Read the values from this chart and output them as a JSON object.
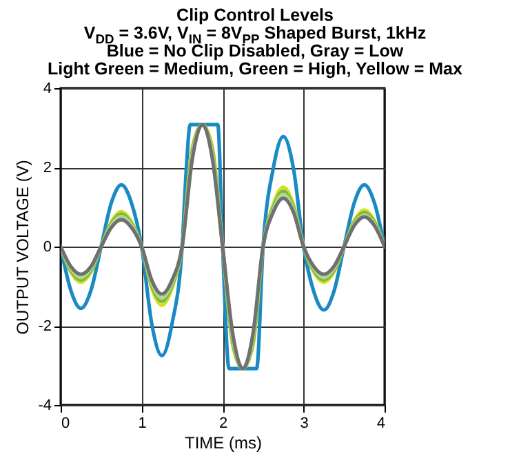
{
  "chart_data": {
    "type": "line",
    "title": "Clip Control Levels",
    "subtitle": "V$_{DD}$ = 3.6V, V$_{IN}$ = 8V$_{PP}$ Shaped Burst, 1kHz\nBlue = No Clip Disabled, Gray = Low\nLight Green = Medium, Green = High, Yellow = Max",
    "xlabel": "TIME (ms)",
    "ylabel": "OUTPUT VOLTAGE (V)",
    "x": [
      0,
      0.125,
      0.25,
      0.375,
      0.5,
      0.625,
      0.75,
      0.875,
      1,
      1.125,
      1.25,
      1.375,
      1.5,
      1.625,
      1.75,
      1.875,
      2,
      2.125,
      2.25,
      2.375,
      2.5,
      2.625,
      2.75,
      2.875,
      3,
      3.125,
      3.25,
      3.375,
      3.5,
      3.625,
      3.75,
      3.875,
      4
    ],
    "series": [
      {
        "color": "#1a8ac4",
        "x": [
          0,
          0.125,
          0.25,
          0.375,
          0.5,
          0.625,
          0.75,
          0.875,
          1,
          1.125,
          1.25,
          1.375,
          1.5,
          1.55,
          1.6,
          1.94,
          2.0,
          2.08,
          2.42,
          2.5,
          2.625,
          2.75,
          2.875,
          3,
          3.125,
          3.25,
          3.375,
          3.5,
          3.625,
          3.75,
          3.875,
          4
        ],
        "values": [
          0,
          -1.1,
          -1.56,
          -1.1,
          0,
          1.1,
          1.56,
          1.1,
          0,
          -1.95,
          -2.75,
          -1.95,
          0,
          1.9,
          3.08,
          3.08,
          0,
          -3.08,
          -3.08,
          0,
          1.97,
          2.78,
          1.97,
          0,
          -1.13,
          -1.6,
          -1.13,
          0,
          1.1,
          1.56,
          1.1,
          0
        ]
      },
      {
        "color": "#d4df1a",
        "values": [
          0,
          -0.64,
          -0.9,
          -0.64,
          0,
          0.62,
          0.88,
          0.62,
          0,
          -1.05,
          -1.48,
          -1.05,
          0,
          2.5,
          3.08,
          2.5,
          0,
          -2.5,
          -3.08,
          -2.5,
          0,
          1.06,
          1.5,
          1.06,
          0,
          -0.64,
          -0.9,
          -0.64,
          0,
          0.65,
          0.92,
          0.65,
          0
        ]
      },
      {
        "color": "#7ab648",
        "values": [
          0,
          -0.6,
          -0.84,
          -0.6,
          0,
          0.58,
          0.82,
          0.58,
          0,
          -0.98,
          -1.38,
          -0.98,
          0,
          2.4,
          3.08,
          2.4,
          0,
          -2.4,
          -3.08,
          -2.4,
          0,
          0.99,
          1.4,
          0.99,
          0,
          -0.6,
          -0.84,
          -0.6,
          0,
          0.61,
          0.86,
          0.61,
          0
        ]
      },
      {
        "color": "#b2d88a",
        "values": [
          0,
          -0.55,
          -0.78,
          -0.55,
          0,
          0.54,
          0.76,
          0.54,
          0,
          -0.92,
          -1.3,
          -0.92,
          0,
          2.3,
          3.08,
          2.3,
          0,
          -2.3,
          -3.08,
          -2.3,
          0,
          0.93,
          1.32,
          0.93,
          0,
          -0.55,
          -0.78,
          -0.55,
          0,
          0.57,
          0.8,
          0.57,
          0
        ]
      },
      {
        "color": "#707070",
        "values": [
          0,
          -0.5,
          -0.7,
          -0.5,
          0,
          0.48,
          0.68,
          0.48,
          0,
          -0.85,
          -1.2,
          -0.85,
          0,
          2.2,
          3.08,
          2.2,
          0,
          -2.2,
          -3.08,
          -2.2,
          0,
          0.87,
          1.22,
          0.87,
          0,
          -0.5,
          -0.7,
          -0.5,
          0,
          0.53,
          0.75,
          0.53,
          0
        ]
      }
    ],
    "xlim": [
      0,
      4
    ],
    "xticks": [
      0,
      1,
      2,
      3,
      4
    ],
    "ylim": [
      -4,
      4
    ],
    "yticks": [
      -4,
      -2,
      0,
      2,
      4
    ],
    "grid": true
  }
}
